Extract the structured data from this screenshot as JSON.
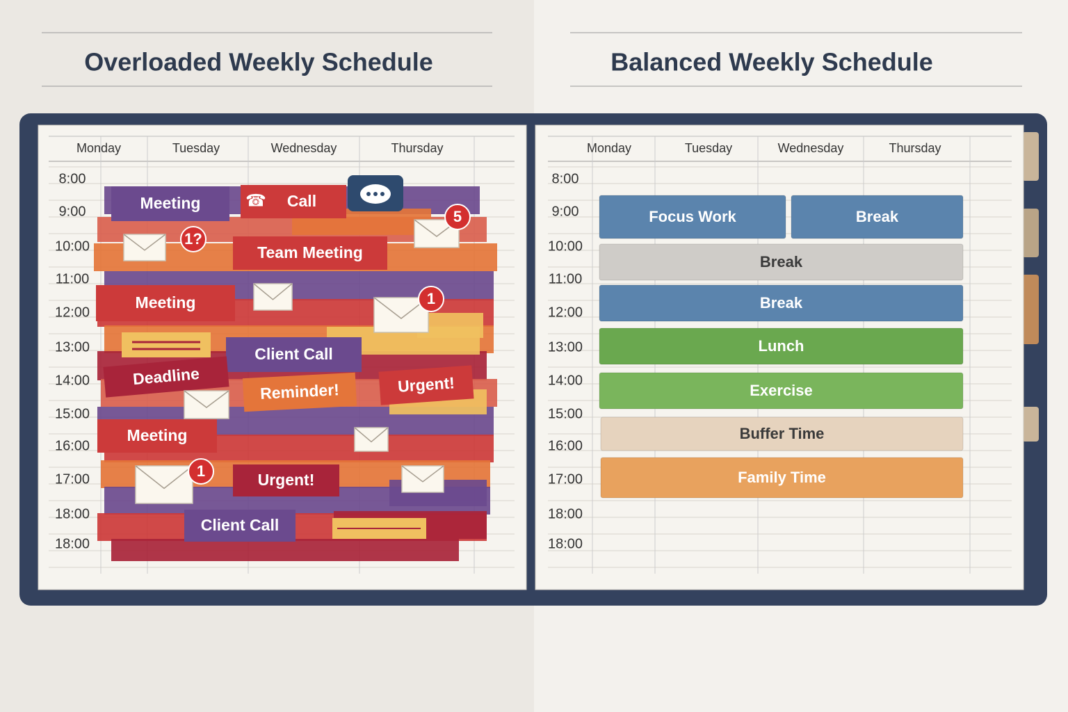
{
  "left": {
    "title": "Overloaded Weekly Schedule",
    "days": [
      "Monday",
      "Tuesday",
      "Wednesday",
      "Thursday"
    ],
    "times": [
      "8:00",
      "9:00",
      "10:00",
      "11:00",
      "12:00",
      "13:00",
      "14:00",
      "15:00",
      "16:00",
      "17:00",
      "18:00",
      "18:00"
    ],
    "items": [
      "Meeting",
      "Call",
      "Team Meeting",
      "Meeting",
      "Client Call",
      "Deadline",
      "Reminder!",
      "Urgent!",
      "Meeting",
      "Urgent!",
      "Client Call"
    ],
    "badges": [
      "1?",
      "5",
      "1",
      "1"
    ]
  },
  "right": {
    "title": "Balanced Weekly Schedule",
    "days": [
      "Monday",
      "Tuesday",
      "Wednesday",
      "Thursday"
    ],
    "times": [
      "8:00",
      "9:00",
      "10:00",
      "11:00",
      "12:00",
      "13:00",
      "14:00",
      "15:00",
      "16:00",
      "17:00",
      "18:00",
      "18:00"
    ],
    "blocks": [
      "Focus Work",
      "Break",
      "Break",
      "Break",
      "Lunch",
      "Exercise",
      "Buffer Time",
      "Family Time"
    ]
  }
}
